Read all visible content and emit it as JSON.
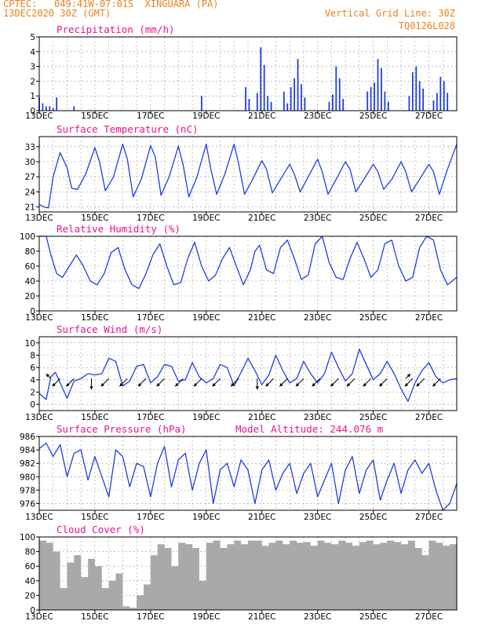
{
  "header": {
    "line1": "CPTEC:   049:41W-07:01S  XINGUARA (PA)",
    "line2": "13DEC2020 30Z (GMT)",
    "grid_note": "Vertical Grid Line: 30Z",
    "run_id": "TQ0126L028"
  },
  "colors": {
    "header": "#ee7f1e",
    "panel_title": "#e8158f",
    "series": "#1f3fe0",
    "cloud": "#a9a9a9",
    "grid": "#9a9a9a",
    "wind_arrow": "#000000"
  },
  "chart_data": [
    {
      "type": "bar",
      "title": "Precipitation (mm/h)",
      "ylim": [
        0,
        5
      ],
      "yticks": [
        0,
        1,
        2,
        3,
        4,
        5
      ],
      "xtick_labels": [
        "13DEC",
        "15DEC",
        "17DEC",
        "19DEC",
        "21DEC",
        "23DEC",
        "25DEC",
        "27DEC"
      ],
      "x_start_hours": 0,
      "x_end_hours": 360,
      "bars": [
        {
          "h": 0,
          "v": 0.9
        },
        {
          "h": 3,
          "v": 0.5
        },
        {
          "h": 6,
          "v": 0.3
        },
        {
          "h": 9,
          "v": 0.3
        },
        {
          "h": 12,
          "v": 0.2
        },
        {
          "h": 15,
          "v": 0.9
        },
        {
          "h": 30,
          "v": 0.3
        },
        {
          "h": 140,
          "v": 1.0
        },
        {
          "h": 178,
          "v": 1.6
        },
        {
          "h": 181,
          "v": 0.8
        },
        {
          "h": 188,
          "v": 1.2
        },
        {
          "h": 191,
          "v": 4.3
        },
        {
          "h": 194,
          "v": 3.1
        },
        {
          "h": 197,
          "v": 1.0
        },
        {
          "h": 200,
          "v": 0.6
        },
        {
          "h": 211,
          "v": 1.3
        },
        {
          "h": 214,
          "v": 0.5
        },
        {
          "h": 217,
          "v": 1.6
        },
        {
          "h": 220,
          "v": 2.2
        },
        {
          "h": 223,
          "v": 3.5
        },
        {
          "h": 226,
          "v": 1.8
        },
        {
          "h": 229,
          "v": 0.9
        },
        {
          "h": 250,
          "v": 0.6
        },
        {
          "h": 253,
          "v": 1.1
        },
        {
          "h": 256,
          "v": 3.0
        },
        {
          "h": 259,
          "v": 2.2
        },
        {
          "h": 262,
          "v": 0.8
        },
        {
          "h": 283,
          "v": 1.3
        },
        {
          "h": 286,
          "v": 1.6
        },
        {
          "h": 289,
          "v": 1.9
        },
        {
          "h": 292,
          "v": 3.5
        },
        {
          "h": 295,
          "v": 2.9
        },
        {
          "h": 298,
          "v": 1.3
        },
        {
          "h": 301,
          "v": 0.6
        },
        {
          "h": 319,
          "v": 1.0
        },
        {
          "h": 322,
          "v": 2.6
        },
        {
          "h": 325,
          "v": 3.0
        },
        {
          "h": 328,
          "v": 2.0
        },
        {
          "h": 331,
          "v": 1.5
        },
        {
          "h": 340,
          "v": 0.7
        },
        {
          "h": 343,
          "v": 1.2
        },
        {
          "h": 346,
          "v": 2.3
        },
        {
          "h": 349,
          "v": 2.0
        },
        {
          "h": 352,
          "v": 1.2
        }
      ]
    },
    {
      "type": "line",
      "title": "Surface Temperature (nC)",
      "ylim": [
        20,
        35
      ],
      "yticks": [
        21,
        24,
        27,
        30,
        33
      ],
      "xtick_labels": [
        "13DEC",
        "15DEC",
        "17DEC",
        "19DEC",
        "21DEC",
        "23DEC",
        "25DEC",
        "27DEC"
      ],
      "series": [
        {
          "x_hours": [
            0,
            4,
            8,
            12,
            18,
            24,
            28,
            33,
            40,
            48,
            52,
            57,
            64,
            72,
            76,
            81,
            88,
            96,
            100,
            105,
            112,
            120,
            124,
            129,
            136,
            144,
            148,
            153,
            160,
            168,
            172,
            177,
            184,
            192,
            196,
            201,
            208,
            216,
            220,
            225,
            232,
            240,
            244,
            249,
            256,
            264,
            268,
            273,
            280,
            288,
            292,
            297,
            304,
            312,
            316,
            321,
            328,
            336,
            340,
            345,
            352,
            360
          ],
          "values": [
            21.5,
            21.0,
            20.8,
            27.0,
            31.8,
            28.8,
            24.7,
            24.5,
            27.5,
            32.8,
            30.0,
            24.2,
            27.0,
            33.5,
            30.5,
            23.0,
            26.5,
            33.2,
            31.0,
            23.3,
            27.0,
            33.1,
            29.5,
            23.0,
            27.0,
            33.5,
            28.5,
            23.5,
            27.5,
            33.5,
            29.5,
            23.5,
            26.5,
            30.2,
            28.5,
            23.8,
            26.5,
            29.5,
            27.5,
            24.0,
            27.0,
            30.5,
            28.0,
            23.5,
            26.5,
            30.0,
            28.5,
            24.0,
            26.5,
            29.5,
            28.0,
            24.5,
            26.5,
            30.0,
            28.0,
            24.0,
            26.5,
            29.5,
            28.0,
            23.5,
            28.5,
            33.5
          ]
        }
      ]
    },
    {
      "type": "line",
      "title": "Relative Humidity (%)",
      "ylim": [
        0,
        100
      ],
      "yticks": [
        0,
        20,
        40,
        60,
        80,
        100
      ],
      "xtick_labels": [
        "13DEC",
        "15DEC",
        "17DEC",
        "19DEC",
        "21DEC",
        "23DEC",
        "25DEC",
        "27DEC"
      ],
      "series": [
        {
          "x_hours": [
            0,
            6,
            10,
            15,
            20,
            26,
            32,
            38,
            44,
            50,
            56,
            62,
            68,
            74,
            80,
            86,
            92,
            98,
            104,
            110,
            116,
            122,
            128,
            134,
            140,
            146,
            152,
            158,
            164,
            170,
            176,
            182,
            186,
            190,
            196,
            202,
            208,
            214,
            220,
            226,
            232,
            238,
            244,
            250,
            256,
            262,
            268,
            274,
            280,
            286,
            292,
            298,
            304,
            310,
            316,
            322,
            328,
            334,
            340,
            346,
            352,
            360
          ],
          "values": [
            100,
            100,
            75,
            50,
            45,
            60,
            75,
            60,
            40,
            35,
            50,
            78,
            85,
            55,
            35,
            30,
            50,
            75,
            90,
            60,
            35,
            38,
            70,
            92,
            60,
            40,
            48,
            70,
            85,
            60,
            35,
            55,
            80,
            88,
            55,
            50,
            85,
            95,
            70,
            42,
            48,
            90,
            100,
            65,
            45,
            42,
            70,
            92,
            70,
            45,
            55,
            90,
            95,
            60,
            40,
            45,
            85,
            100,
            95,
            55,
            35,
            45
          ]
        }
      ]
    },
    {
      "type": "line",
      "title": "Surface Wind (m/s)",
      "ylim": [
        -1,
        11
      ],
      "yticks": [
        0,
        2,
        4,
        6,
        8,
        10
      ],
      "xtick_labels": [
        "13DEC",
        "15DEC",
        "17DEC",
        "19DEC",
        "21DEC",
        "23DEC",
        "25DEC",
        "27DEC"
      ],
      "series": [
        {
          "x_hours": [
            0,
            6,
            10,
            14,
            18,
            24,
            30,
            36,
            42,
            48,
            54,
            60,
            66,
            72,
            78,
            84,
            90,
            96,
            102,
            108,
            114,
            120,
            126,
            132,
            138,
            144,
            150,
            156,
            162,
            168,
            174,
            180,
            186,
            192,
            198,
            204,
            210,
            216,
            222,
            228,
            234,
            240,
            246,
            252,
            258,
            264,
            270,
            276,
            282,
            288,
            294,
            300,
            306,
            312,
            318,
            324,
            330,
            336,
            342,
            348,
            354,
            360
          ],
          "values": [
            1.8,
            0.8,
            4.5,
            5.2,
            3.5,
            1.0,
            3.8,
            4.2,
            5.0,
            4.8,
            5.0,
            7.5,
            7.0,
            3.0,
            3.8,
            6.2,
            6.5,
            3.5,
            4.5,
            6.5,
            6.2,
            3.8,
            4.0,
            6.8,
            4.5,
            3.5,
            4.2,
            6.5,
            6.0,
            3.0,
            5.2,
            7.5,
            5.5,
            3.2,
            4.8,
            8.0,
            5.5,
            3.5,
            4.2,
            7.0,
            5.0,
            3.5,
            5.0,
            8.5,
            6.0,
            3.8,
            5.0,
            9.0,
            6.5,
            4.0,
            5.0,
            7.0,
            5.0,
            2.5,
            0.5,
            3.5,
            5.5,
            6.8,
            4.5,
            3.5,
            4.0,
            4.2
          ]
        }
      ],
      "wind_arrows": [
        {
          "h": 10,
          "dir": "ul"
        },
        {
          "h": 18,
          "dir": "dl"
        },
        {
          "h": 30,
          "dir": "dl"
        },
        {
          "h": 45,
          "dir": "d"
        },
        {
          "h": 60,
          "dir": "dl"
        },
        {
          "h": 76,
          "dir": "dl"
        },
        {
          "h": 92,
          "dir": "dl"
        },
        {
          "h": 108,
          "dir": "dl"
        },
        {
          "h": 124,
          "dir": "dl"
        },
        {
          "h": 140,
          "dir": "dl"
        },
        {
          "h": 156,
          "dir": "dl"
        },
        {
          "h": 172,
          "dir": "dl"
        },
        {
          "h": 188,
          "dir": "d"
        },
        {
          "h": 202,
          "dir": "dl"
        },
        {
          "h": 214,
          "dir": "dl"
        },
        {
          "h": 228,
          "dir": "dl"
        },
        {
          "h": 242,
          "dir": "dl"
        },
        {
          "h": 258,
          "dir": "dl"
        },
        {
          "h": 272,
          "dir": "dl"
        },
        {
          "h": 286,
          "dir": "dl"
        },
        {
          "h": 300,
          "dir": "dl"
        },
        {
          "h": 316,
          "dir": "ur"
        },
        {
          "h": 322,
          "dir": "dl"
        },
        {
          "h": 332,
          "dir": "dl"
        },
        {
          "h": 346,
          "dir": "dl"
        }
      ]
    },
    {
      "type": "line",
      "title": "Surface Pressure (hPa)",
      "annotation": "Model Altitude: 244.076 m",
      "ylim": [
        975,
        986
      ],
      "yticks": [
        976,
        978,
        980,
        982,
        984,
        986
      ],
      "xtick_labels": [
        "13DEC",
        "15DEC",
        "17DEC",
        "19DEC",
        "21DEC",
        "23DEC",
        "25DEC",
        "27DEC"
      ],
      "series": [
        {
          "x_hours": [
            0,
            6,
            12,
            18,
            24,
            30,
            36,
            42,
            48,
            54,
            60,
            66,
            72,
            78,
            84,
            90,
            96,
            102,
            108,
            114,
            120,
            126,
            132,
            138,
            144,
            150,
            156,
            162,
            168,
            174,
            180,
            186,
            192,
            198,
            204,
            210,
            216,
            222,
            228,
            234,
            240,
            246,
            252,
            258,
            264,
            270,
            276,
            282,
            288,
            294,
            300,
            306,
            312,
            318,
            324,
            330,
            336,
            342,
            348,
            354,
            360
          ],
          "values": [
            984.2,
            985.0,
            983.0,
            984.8,
            980.0,
            983.5,
            984.0,
            979.5,
            983.0,
            980.0,
            977.0,
            984.0,
            983.0,
            978.5,
            982.0,
            981.5,
            977.0,
            982.0,
            984.5,
            978.5,
            982.5,
            983.5,
            978.0,
            982.0,
            984.0,
            976.0,
            981.0,
            982.0,
            978.5,
            982.5,
            981.0,
            976.0,
            981.0,
            982.5,
            978.0,
            980.5,
            982.0,
            977.5,
            980.5,
            982.0,
            977.0,
            979.5,
            982.0,
            976.0,
            981.0,
            983.0,
            977.5,
            981.0,
            982.5,
            976.5,
            979.5,
            982.0,
            977.5,
            981.0,
            982.5,
            980.5,
            982.0,
            978.0,
            975.0,
            976.0,
            979.0
          ]
        }
      ]
    },
    {
      "type": "area",
      "title": "Cloud Cover (%)",
      "ylim": [
        0,
        100
      ],
      "yticks": [
        0,
        20,
        40,
        60,
        80,
        100
      ],
      "xtick_labels": [
        "13DEC",
        "15DEC",
        "17DEC",
        "19DEC",
        "21DEC",
        "23DEC",
        "25DEC",
        "27DEC"
      ],
      "series": [
        {
          "x_hours": [
            0,
            6,
            12,
            18,
            24,
            30,
            36,
            42,
            48,
            54,
            60,
            66,
            72,
            78,
            84,
            90,
            96,
            102,
            108,
            114,
            120,
            126,
            132,
            138,
            144,
            150,
            156,
            162,
            168,
            174,
            180,
            186,
            192,
            198,
            204,
            210,
            216,
            222,
            228,
            234,
            240,
            246,
            252,
            258,
            264,
            270,
            276,
            282,
            288,
            294,
            300,
            306,
            312,
            318,
            324,
            330,
            336,
            342,
            348,
            354,
            360
          ],
          "values": [
            95,
            92,
            80,
            30,
            65,
            75,
            45,
            70,
            60,
            30,
            40,
            50,
            5,
            3,
            20,
            35,
            75,
            90,
            85,
            60,
            92,
            90,
            85,
            40,
            92,
            95,
            85,
            90,
            95,
            90,
            95,
            95,
            88,
            92,
            95,
            90,
            95,
            92,
            93,
            88,
            95,
            92,
            90,
            95,
            92,
            88,
            93,
            95,
            90,
            92,
            95,
            93,
            90,
            95,
            85,
            75,
            95,
            92,
            88,
            90,
            90
          ]
        }
      ]
    }
  ]
}
